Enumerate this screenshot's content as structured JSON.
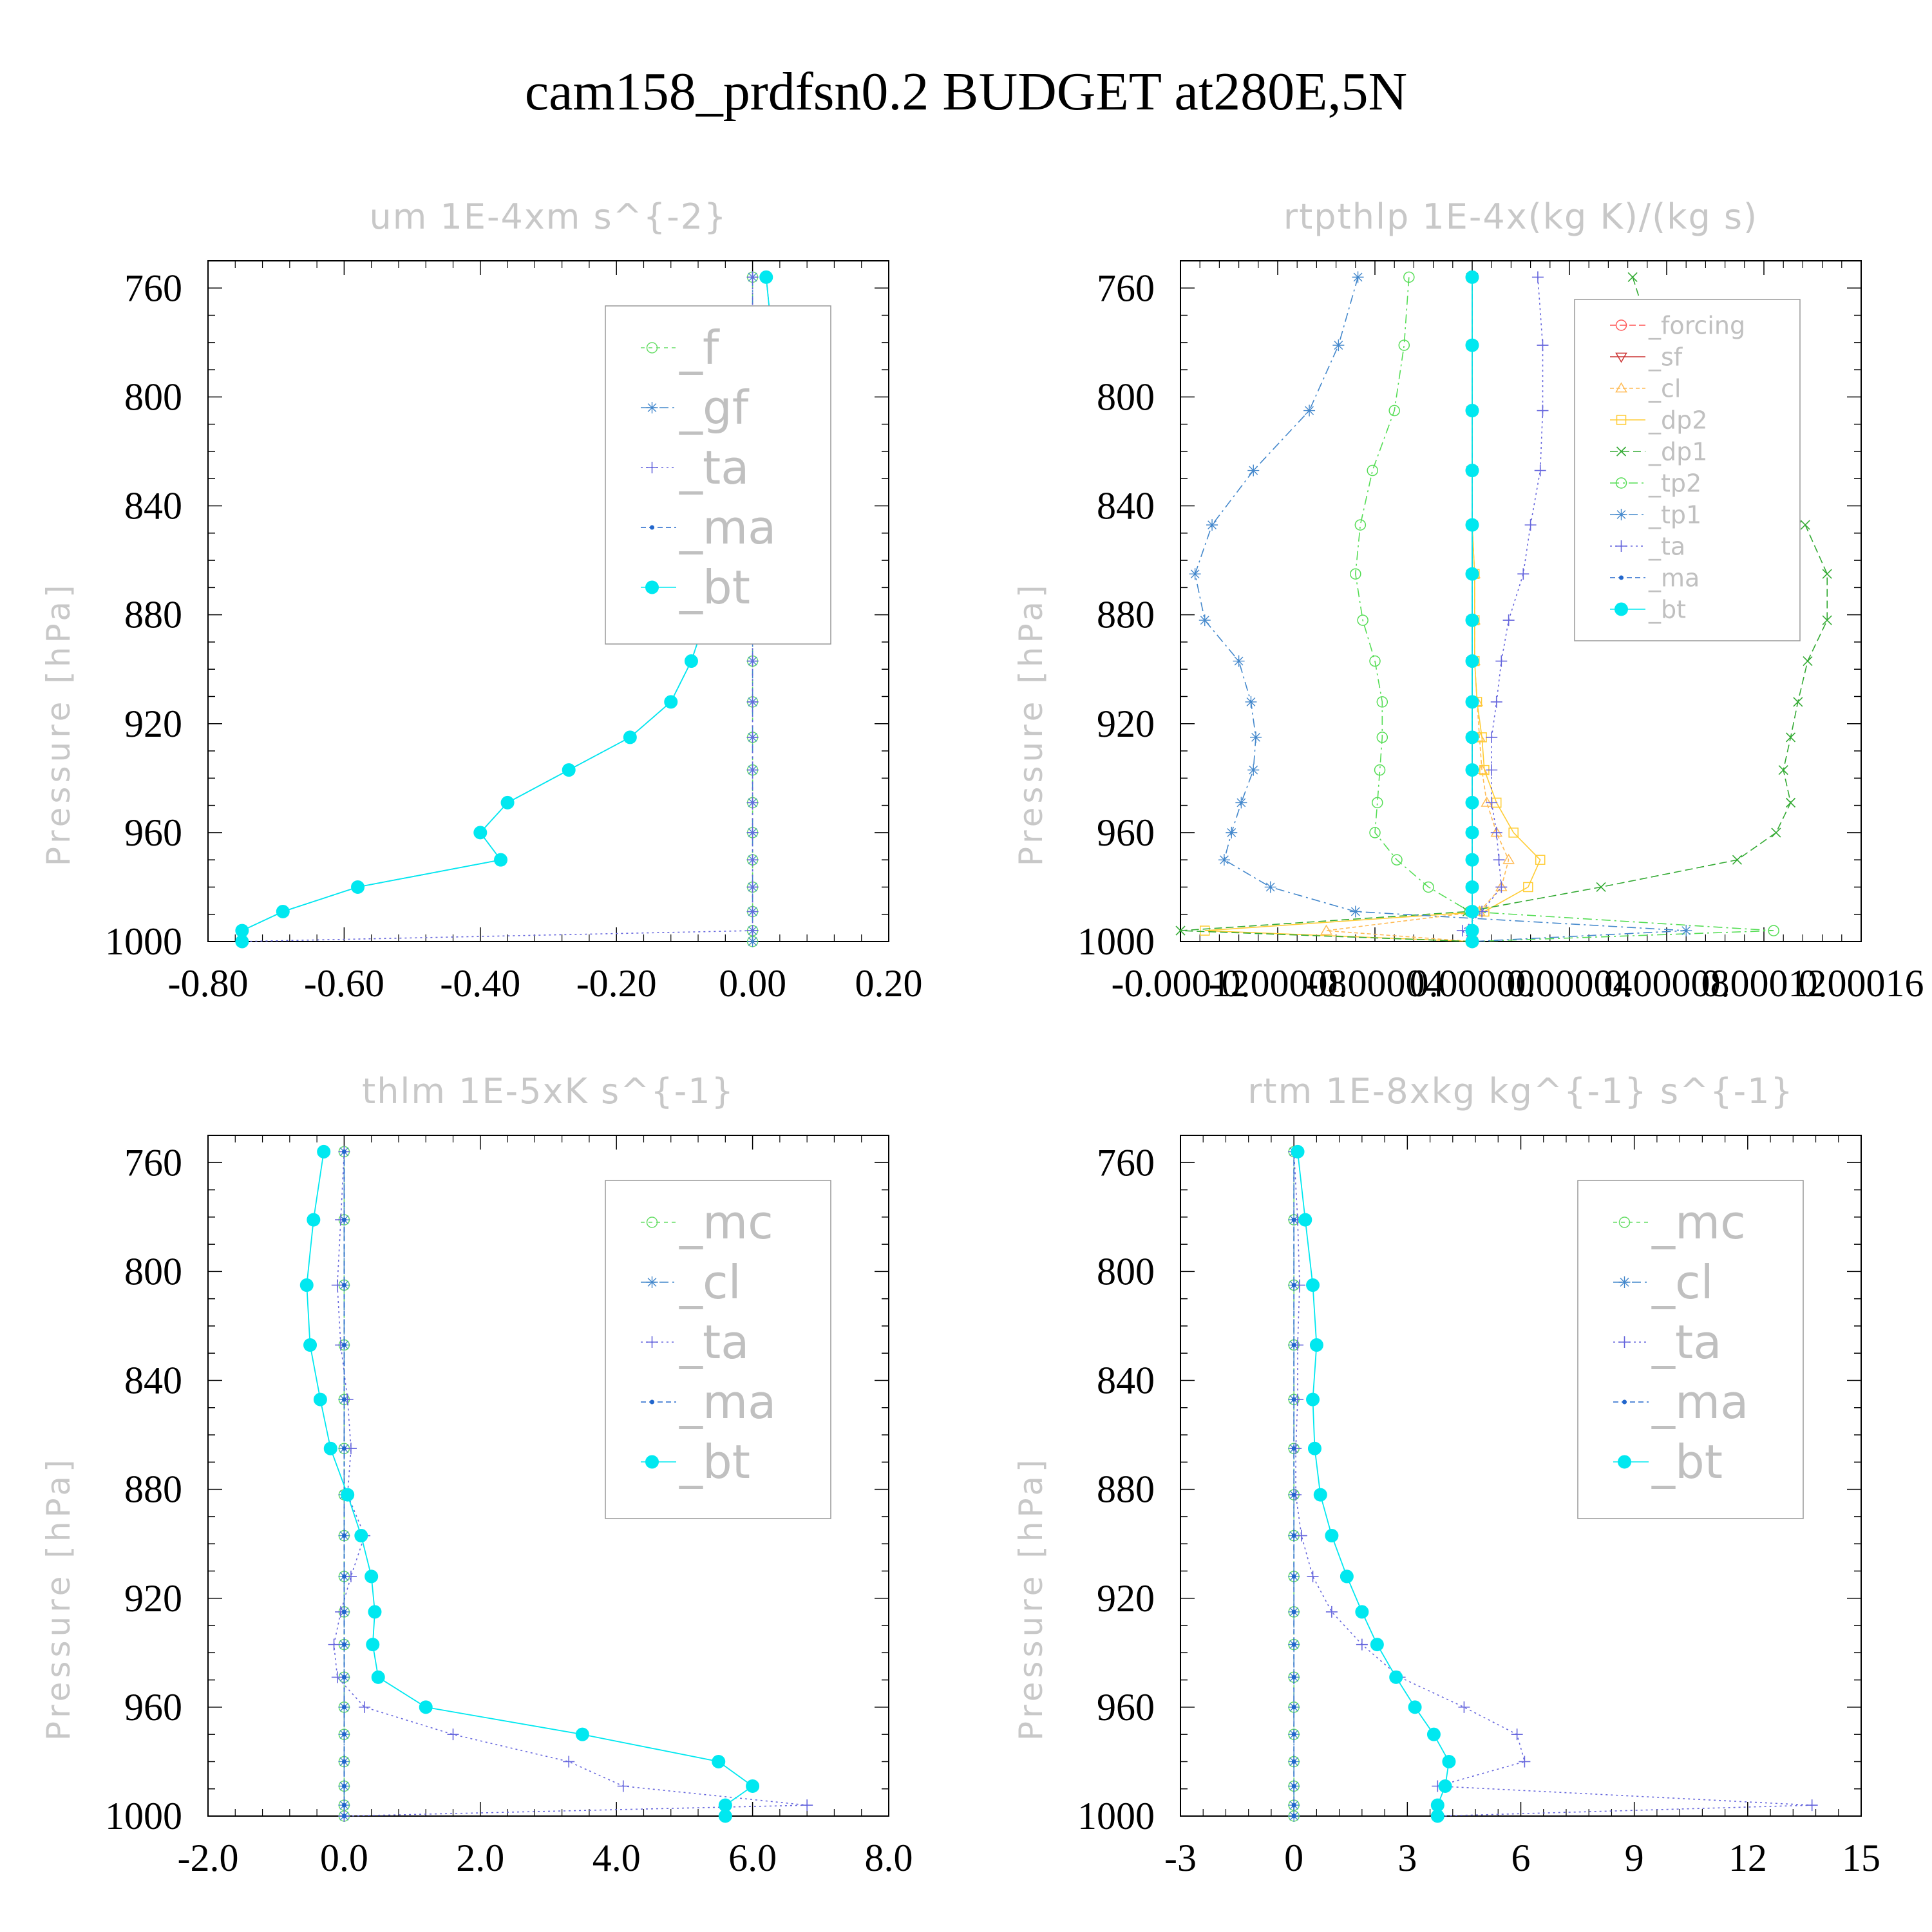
{
  "figure_title": "cam158_prdfsn0.2  BUDGET at280E,5N",
  "chart_data": [
    {
      "type": "line",
      "title": "um  1E-4xm s^{-2}",
      "ylabel": "Pressure [hPa]",
      "xlabel": "",
      "xlim": [
        -0.8,
        0.2
      ],
      "ylim": [
        750,
        1000
      ],
      "y_reversed": true,
      "x_ticks": [
        -0.8,
        -0.6,
        -0.4,
        -0.2,
        0.0,
        0.2
      ],
      "x_tick_labels": [
        "-0.80",
        "-0.60",
        "-0.40",
        "-0.20",
        "0.00",
        "0.20"
      ],
      "y_ticks": [
        760,
        800,
        840,
        880,
        920,
        960,
        1000
      ],
      "y_tick_labels": [
        "760",
        "800",
        "840",
        "880",
        "920",
        "960",
        "1000"
      ],
      "legend_position": "top-right",
      "legend_font_size": 72,
      "pressure_levels": [
        756,
        781,
        805,
        827,
        847,
        865,
        882,
        897,
        912,
        925,
        937,
        949,
        960,
        970,
        980,
        989,
        996,
        1000
      ],
      "series": [
        {
          "name": "_f",
          "color": "#66dd66",
          "marker": "circle-open",
          "dash": "6,6",
          "values": [
            0,
            0,
            0,
            0,
            0,
            0,
            0,
            0,
            0,
            0,
            0,
            0,
            0,
            0,
            0,
            0,
            0,
            0
          ]
        },
        {
          "name": "_gf",
          "color": "#4488cc",
          "marker": "asterisk",
          "dash": "14,6,3,6",
          "values": [
            0,
            0,
            0,
            0,
            0,
            0,
            0,
            0,
            0,
            0,
            0,
            0,
            0,
            0,
            0,
            0,
            0,
            0
          ]
        },
        {
          "name": "_ta",
          "color": "#6666dd",
          "marker": "plus",
          "dash": "3,5",
          "values": [
            0,
            0,
            0,
            0,
            0,
            0,
            0,
            0,
            0,
            0,
            0,
            0,
            0,
            0,
            0,
            0,
            0,
            -0.75
          ]
        },
        {
          "name": "_ma",
          "color": "#2266cc",
          "marker": "dot",
          "dash": "8,5",
          "values": [
            0.02,
            0.03,
            0.04,
            0.03,
            0.0,
            -0.02,
            -0.07,
            -0.09,
            -0.12,
            -0.18,
            -0.27,
            -0.36,
            -0.4,
            -0.37,
            -0.58,
            -0.69,
            -0.75,
            -0.75
          ]
        },
        {
          "name": "_bt",
          "color": "#00e8f0",
          "marker": "filled-circle",
          "dash": "",
          "values": [
            0.02,
            0.03,
            0.04,
            0.03,
            0.0,
            -0.02,
            -0.07,
            -0.09,
            -0.12,
            -0.18,
            -0.27,
            -0.36,
            -0.4,
            -0.37,
            -0.58,
            -0.69,
            -0.75,
            -0.75
          ]
        }
      ]
    },
    {
      "type": "line",
      "title": "rtpthlp  1E-4x(kg K)/(kg s)",
      "ylabel": "Pressure [hPa]",
      "xlabel": "",
      "xlim": [
        -0.00012,
        0.00016
      ],
      "ylim": [
        750,
        1000
      ],
      "y_reversed": true,
      "x_ticks": [
        -0.00012,
        -8e-05,
        -4e-05,
        0.0,
        4e-05,
        8e-05,
        0.00012,
        0.00016
      ],
      "x_tick_labels": [
        "-0.00012",
        "-0.00008",
        "-0.00004",
        "0.00000",
        "0.00004",
        "0.00008",
        "0.00012",
        "0.00016"
      ],
      "y_ticks": [
        760,
        800,
        840,
        880,
        920,
        960,
        1000
      ],
      "y_tick_labels": [
        "760",
        "800",
        "840",
        "880",
        "920",
        "960",
        "1000"
      ],
      "legend_position": "top-right",
      "legend_font_size": 38,
      "pressure_levels": [
        756,
        781,
        805,
        827,
        847,
        865,
        882,
        897,
        912,
        925,
        937,
        949,
        960,
        970,
        980,
        989,
        996,
        1000
      ],
      "series": [
        {
          "name": "_forcing",
          "color": "#ff5555",
          "marker": "circle-open",
          "dash": "10,5",
          "values": [
            0,
            0,
            0,
            0,
            0,
            0,
            0,
            0,
            0,
            0,
            0,
            0,
            0,
            0,
            0,
            0,
            0,
            0
          ]
        },
        {
          "name": "_sf",
          "color": "#cc3333",
          "marker": "triangle-down",
          "dash": "",
          "values": [
            0,
            0,
            0,
            0,
            0,
            0,
            0,
            0,
            0,
            0,
            0,
            0,
            0,
            0,
            0,
            0,
            0,
            0
          ]
        },
        {
          "name": "_cl",
          "color": "#ffbb55",
          "marker": "triangle-up",
          "dash": "6,4",
          "values": [
            0,
            0,
            0,
            0,
            0,
            1e-06,
            1e-06,
            1e-06,
            2e-06,
            3e-06,
            4e-06,
            6e-06,
            1e-05,
            1.5e-05,
            1.2e-05,
            3e-06,
            -6e-05,
            0
          ]
        },
        {
          "name": "_dp2",
          "color": "#ffcc33",
          "marker": "square-open",
          "dash": "",
          "values": [
            0,
            0,
            0,
            0,
            0,
            1e-06,
            1e-06,
            1e-06,
            2e-06,
            4e-06,
            5e-06,
            1e-05,
            1.7e-05,
            2.8e-05,
            2.3e-05,
            5e-06,
            -0.00011,
            0
          ]
        },
        {
          "name": "_dp1",
          "color": "#33aa33",
          "marker": "x",
          "dash": "12,6",
          "values": [
            6.6e-05,
            7.5e-05,
            8.5e-05,
            0.000104,
            0.000137,
            0.000146,
            0.000146,
            0.000138,
            0.000134,
            0.000131,
            0.000128,
            0.000131,
            0.000125,
            0.000109,
            5.3e-05,
            -2e-06,
            -0.00012,
            0
          ]
        },
        {
          "name": "_tp2",
          "color": "#55dd55",
          "marker": "circle-open",
          "dash": "14,6,3,6",
          "values": [
            -2.6e-05,
            -2.8e-05,
            -3.2e-05,
            -4.1e-05,
            -4.6e-05,
            -4.8e-05,
            -4.5e-05,
            -4e-05,
            -3.7e-05,
            -3.7e-05,
            -3.8e-05,
            -3.9e-05,
            -4e-05,
            -3.1e-05,
            -1.8e-05,
            -1e-06,
            0.000124,
            0
          ]
        },
        {
          "name": "_tp1",
          "color": "#4488cc",
          "marker": "asterisk",
          "dash": "14,6,3,6",
          "values": [
            -4.7e-05,
            -5.5e-05,
            -6.7e-05,
            -9e-05,
            -0.000107,
            -0.000114,
            -0.00011,
            -9.6e-05,
            -9.1e-05,
            -8.9e-05,
            -9e-05,
            -9.5e-05,
            -9.9e-05,
            -0.000102,
            -8.3e-05,
            -4.8e-05,
            8.8e-05,
            0
          ]
        },
        {
          "name": "_ta",
          "color": "#6666dd",
          "marker": "plus",
          "dash": "3,5",
          "values": [
            2.7e-05,
            2.9e-05,
            2.9e-05,
            2.8e-05,
            2.4e-05,
            2.1e-05,
            1.5e-05,
            1.2e-05,
            1e-05,
            8e-06,
            8e-06,
            8e-06,
            1e-05,
            1.1e-05,
            1.2e-05,
            4e-06,
            -4e-06,
            0
          ]
        },
        {
          "name": "_ma",
          "color": "#2266cc",
          "marker": "dot",
          "dash": "8,5",
          "values": [
            0,
            0,
            0,
            0,
            0,
            0,
            0,
            0,
            0,
            0,
            0,
            0,
            0,
            0,
            0,
            0,
            0,
            0
          ]
        },
        {
          "name": "_bt",
          "color": "#00e8f0",
          "marker": "filled-circle",
          "dash": "",
          "values": [
            0,
            0,
            0,
            0,
            0,
            0,
            0,
            0,
            0,
            0,
            0,
            0,
            0,
            0,
            0,
            0,
            0,
            0
          ]
        }
      ]
    },
    {
      "type": "line",
      "title": "thlm  1E-5xK s^{-1}",
      "ylabel": "Pressure [hPa]",
      "xlabel": "",
      "xlim": [
        -2.0,
        8.0
      ],
      "ylim": [
        750,
        1000
      ],
      "y_reversed": true,
      "x_ticks": [
        -2.0,
        0.0,
        2.0,
        4.0,
        6.0,
        8.0
      ],
      "x_tick_labels": [
        "-2.0",
        "0.0",
        "2.0",
        "4.0",
        "6.0",
        "8.0"
      ],
      "y_ticks": [
        760,
        800,
        840,
        880,
        920,
        960,
        1000
      ],
      "y_tick_labels": [
        "760",
        "800",
        "840",
        "880",
        "920",
        "960",
        "1000"
      ],
      "legend_position": "top-right",
      "legend_font_size": 72,
      "pressure_levels": [
        756,
        781,
        805,
        827,
        847,
        865,
        882,
        897,
        912,
        925,
        937,
        949,
        960,
        970,
        980,
        989,
        996,
        1000
      ],
      "series": [
        {
          "name": "_mc",
          "color": "#66dd66",
          "marker": "circle-open",
          "dash": "6,6",
          "values": [
            0,
            0,
            0,
            0,
            0,
            0,
            0,
            0,
            0,
            0,
            0,
            0,
            0,
            0,
            0,
            0,
            0,
            0
          ]
        },
        {
          "name": "_cl",
          "color": "#4488cc",
          "marker": "asterisk",
          "dash": "14,6,3,6",
          "values": [
            0,
            0,
            0,
            0,
            0,
            0,
            0,
            0,
            0,
            0,
            0,
            0,
            0,
            0,
            0,
            0,
            0,
            0
          ]
        },
        {
          "name": "_ta",
          "color": "#6666dd",
          "marker": "plus",
          "dash": "3,5",
          "values": [
            0.0,
            -0.05,
            -0.1,
            -0.05,
            0.05,
            0.1,
            0.05,
            0.3,
            0.1,
            -0.05,
            -0.15,
            -0.1,
            0.3,
            1.6,
            3.3,
            4.1,
            6.8,
            0.0
          ]
        },
        {
          "name": "_ma",
          "color": "#2266cc",
          "marker": "dot",
          "dash": "8,5",
          "values": [
            0,
            0,
            0,
            0,
            0,
            0,
            0,
            0,
            0,
            0,
            0,
            0,
            0,
            0,
            0,
            0,
            0,
            0
          ]
        },
        {
          "name": "_bt",
          "color": "#00e8f0",
          "marker": "filled-circle",
          "dash": "",
          "values": [
            -0.3,
            -0.45,
            -0.55,
            -0.5,
            -0.35,
            -0.2,
            0.05,
            0.25,
            0.4,
            0.45,
            0.42,
            0.5,
            1.2,
            3.5,
            5.5,
            6.0,
            5.6,
            5.6
          ]
        }
      ]
    },
    {
      "type": "line",
      "title": "rtm  1E-8xkg kg^{-1} s^{-1}",
      "ylabel": "Pressure [hPa]",
      "xlabel": "",
      "xlim": [
        -3,
        15
      ],
      "ylim": [
        750,
        1000
      ],
      "y_reversed": true,
      "x_ticks": [
        -3,
        0,
        3,
        6,
        9,
        12,
        15
      ],
      "x_tick_labels": [
        "-3",
        "0",
        "3",
        "6",
        "9",
        "12",
        "15"
      ],
      "y_ticks": [
        760,
        800,
        840,
        880,
        920,
        960,
        1000
      ],
      "y_tick_labels": [
        "760",
        "800",
        "840",
        "880",
        "920",
        "960",
        "1000"
      ],
      "legend_position": "top-right",
      "legend_font_size": 72,
      "pressure_levels": [
        756,
        781,
        805,
        827,
        847,
        865,
        882,
        897,
        912,
        925,
        937,
        949,
        960,
        970,
        980,
        989,
        996,
        1000
      ],
      "series": [
        {
          "name": "_mc",
          "color": "#66dd66",
          "marker": "circle-open",
          "dash": "6,6",
          "values": [
            0,
            0,
            0,
            0,
            0,
            0,
            0,
            0,
            0,
            0,
            0,
            0,
            0,
            0,
            0,
            0,
            0,
            0
          ]
        },
        {
          "name": "_cl",
          "color": "#4488cc",
          "marker": "asterisk",
          "dash": "14,6,3,6",
          "values": [
            0,
            0,
            0,
            0,
            0,
            0,
            0,
            0,
            0,
            0,
            0,
            0,
            0,
            0,
            0,
            0,
            0,
            0
          ]
        },
        {
          "name": "_ta",
          "color": "#6666dd",
          "marker": "plus",
          "dash": "3,5",
          "values": [
            0.0,
            0.1,
            0.15,
            0.1,
            0.1,
            0.05,
            0.05,
            0.2,
            0.5,
            1.0,
            1.8,
            2.8,
            4.5,
            5.9,
            6.1,
            3.8,
            13.7,
            3.8
          ]
        },
        {
          "name": "_ma",
          "color": "#2266cc",
          "marker": "dot",
          "dash": "8,5",
          "values": [
            0,
            0,
            0,
            0,
            0,
            0,
            0,
            0,
            0,
            0,
            0,
            0,
            0,
            0,
            0,
            0,
            0,
            0
          ]
        },
        {
          "name": "_bt",
          "color": "#00e8f0",
          "marker": "filled-circle",
          "dash": "",
          "values": [
            0.1,
            0.3,
            0.5,
            0.6,
            0.5,
            0.55,
            0.7,
            1.0,
            1.4,
            1.8,
            2.2,
            2.7,
            3.2,
            3.7,
            4.1,
            4.0,
            3.8,
            3.8
          ]
        }
      ]
    }
  ]
}
